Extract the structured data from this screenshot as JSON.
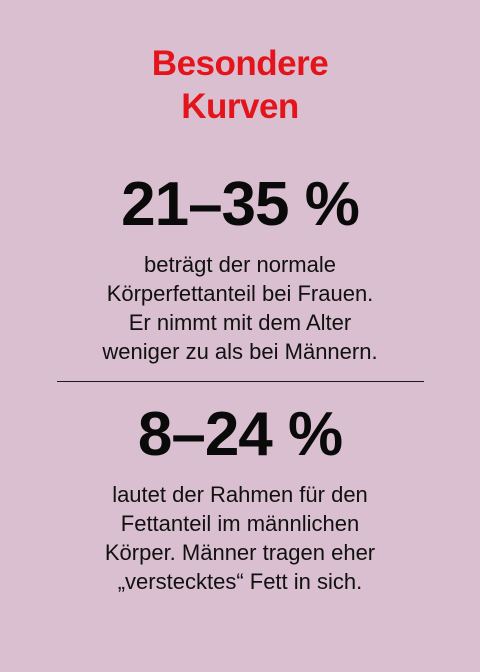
{
  "colors": {
    "background": "#d9bfcf",
    "title": "#e3141b",
    "text": "#111111"
  },
  "title": {
    "line1": "Besondere",
    "line2": "Kurven"
  },
  "section1": {
    "stat": "21–35 %",
    "lines": [
      "beträgt der normale",
      "Körperfettanteil bei Frauen.",
      "Er nimmt mit dem Alter",
      "weniger zu als bei Männern."
    ]
  },
  "section2": {
    "stat": "8–24 %",
    "lines": [
      "lautet der Rahmen für den",
      "Fettanteil im männlichen",
      "Körper. Männer tragen eher",
      "„verstecktes“ Fett in sich."
    ]
  }
}
